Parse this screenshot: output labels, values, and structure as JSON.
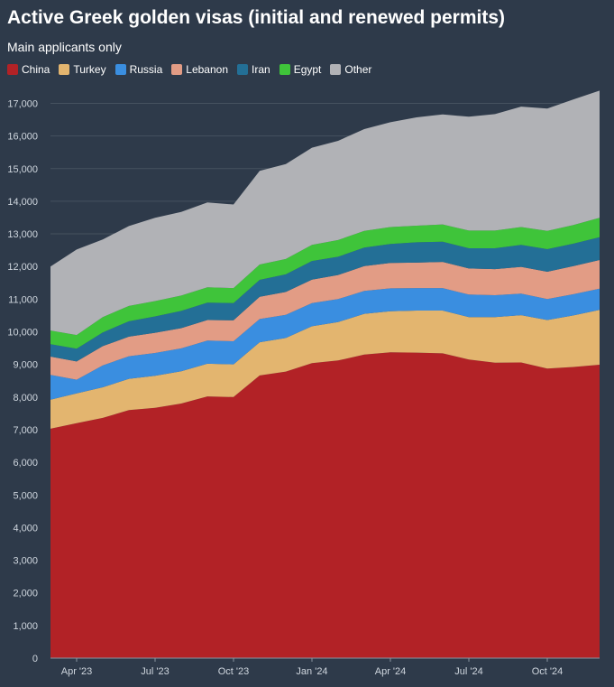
{
  "chart_data": {
    "type": "area",
    "stacked": true,
    "title": "Active Greek golden visas (initial and renewed permits)",
    "subtitle": "Main applicants only",
    "xlabel": "",
    "ylabel": "",
    "ylim": [
      0,
      18000
    ],
    "yticks": [
      0,
      1000,
      2000,
      3000,
      4000,
      5000,
      6000,
      7000,
      8000,
      9000,
      10000,
      11000,
      12000,
      13000,
      14000,
      15000,
      16000,
      17000
    ],
    "x_tick_labels": [
      {
        "label": "Apr '23",
        "index": 1
      },
      {
        "label": "Jul '23",
        "index": 4
      },
      {
        "label": "Oct '23",
        "index": 7
      },
      {
        "label": "Jan '24",
        "index": 10
      },
      {
        "label": "Apr '24",
        "index": 13
      },
      {
        "label": "Jul '24",
        "index": 16
      },
      {
        "label": "Oct '24",
        "index": 19
      }
    ],
    "categories": [
      "Mar '23",
      "Apr '23",
      "May '23",
      "Jun '23",
      "Jul '23",
      "Aug '23",
      "Sep '23",
      "Oct '23",
      "Nov '23",
      "Dec '23",
      "Jan '24",
      "Feb '24",
      "Mar '24",
      "Apr '24",
      "May '24",
      "Jun '24",
      "Jul '24",
      "Aug '24",
      "Sep '24",
      "Oct '24",
      "Nov '24",
      "Dec '24"
    ],
    "series": [
      {
        "name": "China",
        "color": "#b22226",
        "values": [
          7030,
          7200,
          7360,
          7600,
          7670,
          7800,
          8020,
          8000,
          8660,
          8780,
          9040,
          9120,
          9300,
          9370,
          9360,
          9340,
          9150,
          9050,
          9060,
          8870,
          8920,
          8990
        ]
      },
      {
        "name": "Turkey",
        "color": "#e3b56f",
        "values": [
          890,
          910,
          940,
          960,
          980,
          990,
          1000,
          1000,
          1020,
          1030,
          1130,
          1180,
          1250,
          1260,
          1290,
          1310,
          1300,
          1400,
          1450,
          1490,
          1580,
          1680
        ]
      },
      {
        "name": "Russia",
        "color": "#3a8ee0",
        "values": [
          760,
          420,
          670,
          690,
          700,
          700,
          710,
          710,
          710,
          710,
          710,
          700,
          700,
          700,
          690,
          690,
          690,
          670,
          660,
          640,
          650,
          650
        ]
      },
      {
        "name": "Lebanon",
        "color": "#e29c85",
        "values": [
          560,
          560,
          590,
          600,
          620,
          620,
          630,
          640,
          680,
          700,
          720,
          740,
          760,
          780,
          780,
          800,
          800,
          800,
          820,
          840,
          860,
          880
        ]
      },
      {
        "name": "Iran",
        "color": "#236f96",
        "values": [
          380,
          390,
          420,
          470,
          500,
          530,
          530,
          530,
          520,
          540,
          570,
          560,
          570,
          580,
          620,
          620,
          620,
          640,
          670,
          690,
          690,
          700
        ]
      },
      {
        "name": "Egypt",
        "color": "#3fc43a",
        "values": [
          420,
          420,
          470,
          470,
          470,
          470,
          470,
          460,
          470,
          470,
          490,
          510,
          510,
          520,
          510,
          530,
          540,
          540,
          550,
          560,
          570,
          590
        ]
      },
      {
        "name": "Other",
        "color": "#b1b2b6",
        "values": [
          1960,
          2620,
          2380,
          2450,
          2550,
          2560,
          2600,
          2560,
          2870,
          2910,
          2980,
          3040,
          3120,
          3210,
          3320,
          3370,
          3490,
          3570,
          3690,
          3750,
          3850,
          3900
        ]
      }
    ]
  }
}
